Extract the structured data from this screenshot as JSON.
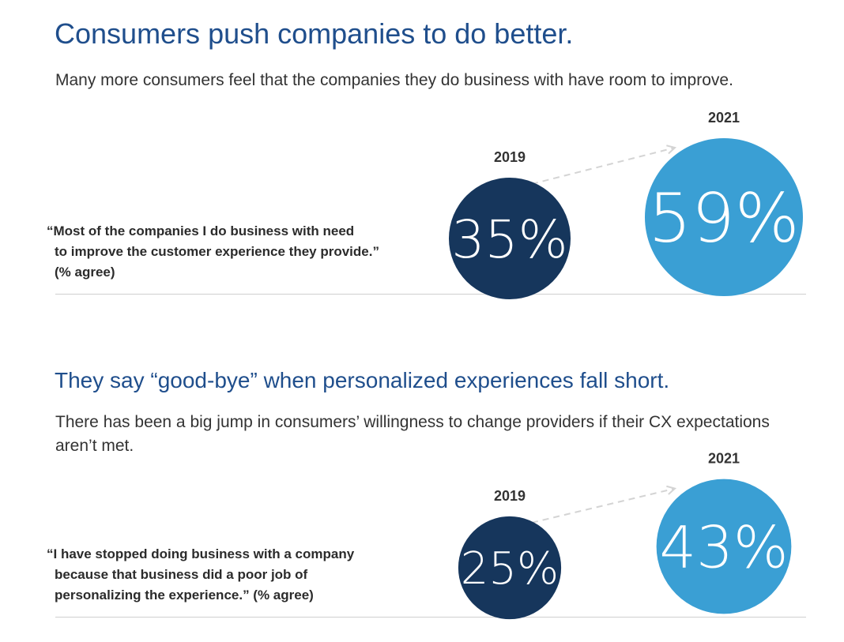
{
  "sections": [
    {
      "title": "Consumers push companies to do better.",
      "subtitle": "Many more consumers feel that the companies they do business with have room to improve.",
      "quote_lines": [
        "“Most of the companies I do business with need",
        "to improve the customer experience they provide.”",
        "(% agree)"
      ]
    },
    {
      "title": "They say “good-bye” when personalized experiences fall short.",
      "subtitle": "There has been a big jump in consumers’ willingness to change providers if their CX expectations aren’t met.",
      "quote_lines": [
        "“I have stopped doing business with a company",
        "because that business did a poor job of",
        "personalizing the experience.” (% agree)"
      ]
    }
  ],
  "colors": {
    "title": "#1f4e8c",
    "bubble_2019": "#16365c",
    "bubble_2021": "#3a9fd4",
    "arrow": "#d4d4d4"
  },
  "chart_data": [
    {
      "type": "bubble",
      "unit": "%",
      "categories": [
        "2019",
        "2021"
      ],
      "values": [
        35,
        59
      ]
    },
    {
      "type": "bubble",
      "unit": "%",
      "categories": [
        "2019",
        "2021"
      ],
      "values": [
        25,
        43
      ]
    }
  ]
}
